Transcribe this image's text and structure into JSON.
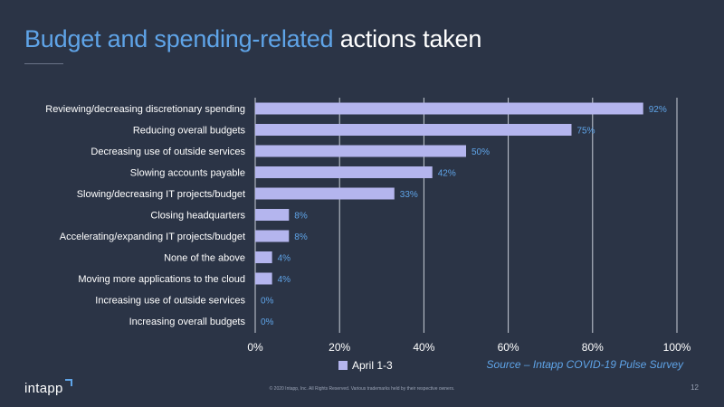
{
  "slide": {
    "title_part1": "Budget and spending-related",
    "title_part2": "actions taken",
    "legend_label": "April 1-3",
    "source": "Source – Intapp COVID-19 Pulse Survey",
    "logo": "intapp",
    "copyright": "© 2020 Intapp, Inc. All Rights Reserved. Various trademarks held by their respective owners.",
    "page_number": "12"
  },
  "colors": {
    "background": "#2b3446",
    "bar": "#b4b5ee",
    "accent": "#5fa4e8",
    "text": "#ffffff",
    "grid": "#c9ced8"
  },
  "chart_data": {
    "type": "bar",
    "orientation": "horizontal",
    "categories": [
      "Reviewing/decreasing discretionary spending",
      "Reducing overall budgets",
      "Decreasing use of outside services",
      "Slowing accounts payable",
      "Slowing/decreasing IT projects/budget",
      "Closing headquarters",
      "Accelerating/expanding IT projects/budget",
      "None of the above",
      "Moving more applications to the cloud",
      "Increasing use of outside services",
      "Increasing overall budgets"
    ],
    "series": [
      {
        "name": "April 1-3",
        "values": [
          92,
          75,
          50,
          42,
          33,
          8,
          8,
          4,
          4,
          0,
          0
        ]
      }
    ],
    "data_labels": [
      "92%",
      "75%",
      "50%",
      "42%",
      "33%",
      "8%",
      "8%",
      "4%",
      "4%",
      "0%",
      "0%"
    ],
    "xlim": [
      0,
      100
    ],
    "x_ticks": [
      "0%",
      "20%",
      "40%",
      "60%",
      "80%",
      "100%"
    ],
    "grid": true,
    "legend_position": "bottom"
  }
}
